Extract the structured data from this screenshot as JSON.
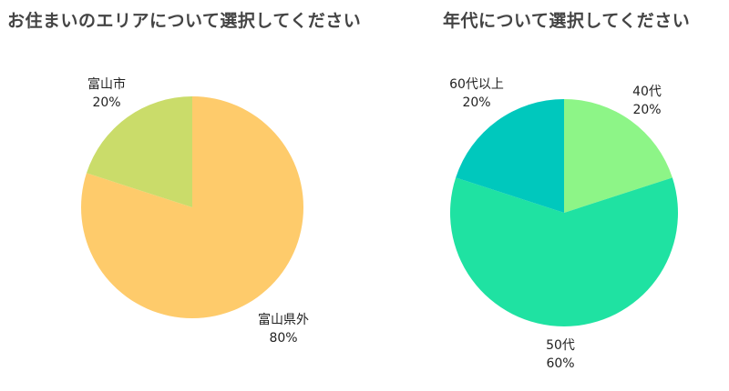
{
  "chart_data": [
    {
      "type": "pie",
      "title": "お住まいのエリアについて選択してください",
      "slices": [
        {
          "label": "富山県外",
          "value": 80,
          "percent_label": "80%",
          "color": "#FECB6B"
        },
        {
          "label": "富山市",
          "value": 20,
          "percent_label": "20%",
          "color": "#CADC6A"
        }
      ]
    },
    {
      "type": "pie",
      "title": "年代について選択してください",
      "slices": [
        {
          "label": "40代",
          "value": 20,
          "percent_label": "20%",
          "color": "#8DF587"
        },
        {
          "label": "50代",
          "value": 60,
          "percent_label": "60%",
          "color": "#1FE2A2"
        },
        {
          "label": "60代以上",
          "value": 20,
          "percent_label": "20%",
          "color": "#00C8BD"
        }
      ]
    }
  ]
}
